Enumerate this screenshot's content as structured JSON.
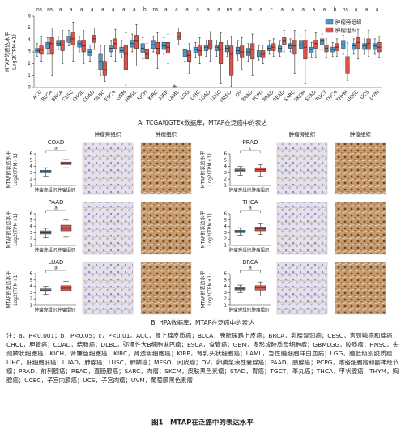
{
  "chart_data": [
    {
      "type": "box",
      "y_label": [
        "MTAP的表达水平",
        "Log2(TPM+1)"
      ],
      "categories": [
        "ACC",
        "BLCA",
        "BRCA",
        "CESC",
        "CHOL",
        "COAD",
        "DLBC",
        "ESCA",
        "GBM",
        "HNSC",
        "KICH",
        "KIRC",
        "KIRP",
        "LAML",
        "LGG",
        "LIHC",
        "LUAD",
        "LUSC",
        "MESO",
        "OV",
        "PAAD",
        "PCPG",
        "PRAD",
        "READ",
        "SARC",
        "SKCM",
        "STAD",
        "TGCT",
        "THCA",
        "THYM",
        "UCEC",
        "UCS",
        "UVM"
      ],
      "significance": [
        "ns",
        "ns",
        "a",
        "a",
        "a",
        "a",
        "a",
        "a",
        "a",
        "a",
        "b",
        "ns",
        "a",
        "a",
        "a",
        "a",
        "a",
        "a",
        "ns",
        "a",
        "a",
        "a",
        "c",
        "a",
        "a",
        "a",
        "a",
        "a",
        "b",
        "ns",
        "a",
        "a",
        "a"
      ],
      "series": [
        {
          "name": "肿瘤旁组织",
          "color": "#4a9acb",
          "values": [
            [
              2.6,
              2.9,
              3.1,
              3.3,
              3.7
            ],
            [
              2.8,
              3.3,
              3.6,
              3.8,
              4.2
            ],
            [
              3.2,
              3.5,
              3.7,
              3.9,
              4.3
            ],
            [
              3.5,
              3.8,
              4.0,
              4.3,
              4.8
            ],
            [
              3.0,
              3.4,
              3.7,
              3.9,
              4.3
            ],
            [
              2.2,
              2.7,
              3.0,
              3.2,
              3.6
            ],
            [
              1.0,
              1.5,
              2.2,
              2.8,
              3.5
            ],
            [
              2.6,
              3.0,
              3.3,
              3.5,
              3.9
            ],
            [
              2.5,
              2.9,
              3.1,
              3.4,
              3.9
            ],
            [
              3.0,
              3.4,
              3.7,
              4.0,
              4.5
            ],
            [
              2.4,
              2.9,
              3.3,
              3.7,
              4.2
            ],
            [
              3.0,
              3.3,
              3.6,
              3.9,
              4.3
            ],
            [
              2.8,
              3.2,
              3.5,
              3.8,
              4.2
            ],
            [
              0.0,
              0.0,
              0.05,
              0.1,
              0.2
            ],
            [
              2.2,
              2.6,
              2.9,
              3.2,
              3.6
            ],
            [
              2.5,
              2.9,
              3.2,
              3.4,
              3.8
            ],
            [
              2.6,
              3.1,
              3.4,
              3.6,
              4.0
            ],
            [
              2.6,
              3.1,
              3.4,
              3.6,
              4.0
            ],
            [
              2.6,
              3.0,
              3.3,
              3.6,
              4.0
            ],
            [
              2.3,
              2.8,
              3.1,
              3.4,
              3.9
            ],
            [
              2.2,
              2.7,
              3.0,
              3.3,
              3.7
            ],
            [
              2.3,
              2.6,
              2.9,
              3.1,
              3.5
            ],
            [
              2.8,
              3.1,
              3.3,
              3.5,
              3.9
            ],
            [
              2.6,
              3.0,
              3.3,
              3.5,
              3.9
            ],
            [
              3.0,
              3.3,
              3.5,
              3.7,
              4.1
            ],
            [
              2.9,
              3.3,
              3.6,
              3.9,
              4.3
            ],
            [
              2.5,
              2.9,
              3.2,
              3.4,
              3.8
            ],
            [
              3.2,
              3.6,
              3.9,
              4.1,
              4.5
            ],
            [
              2.6,
              3.0,
              3.2,
              3.4,
              3.8
            ],
            [
              2.8,
              3.3,
              3.6,
              3.9,
              4.4
            ],
            [
              2.8,
              3.2,
              3.5,
              3.7,
              4.1
            ],
            [
              2.8,
              3.2,
              3.5,
              3.7,
              4.1
            ],
            [
              2.8,
              3.2,
              3.5,
              3.7,
              4.1
            ]
          ]
        },
        {
          "name": "肿瘤组织",
          "color": "#d9534a",
          "values": [
            [
              2.2,
              2.8,
              3.2,
              3.5,
              4.3
            ],
            [
              1.0,
              2.8,
              3.7,
              4.2,
              5.0
            ],
            [
              2.0,
              3.1,
              3.6,
              4.0,
              4.8
            ],
            [
              2.2,
              3.6,
              4.1,
              4.6,
              5.5
            ],
            [
              2.0,
              3.0,
              3.5,
              4.0,
              4.8
            ],
            [
              3.2,
              3.8,
              4.1,
              4.4,
              5.0
            ],
            [
              0.5,
              1.0,
              1.5,
              2.2,
              3.5
            ],
            [
              2.2,
              3.3,
              3.7,
              4.1,
              4.9
            ],
            [
              0.2,
              1.5,
              2.8,
              3.6,
              4.6
            ],
            [
              1.8,
              3.3,
              3.9,
              4.4,
              5.3
            ],
            [
              1.8,
              2.4,
              2.8,
              3.2,
              3.7
            ],
            [
              1.6,
              2.8,
              3.3,
              3.8,
              4.6
            ],
            [
              2.0,
              2.9,
              3.4,
              3.8,
              4.5
            ],
            [
              3.6,
              4.0,
              4.3,
              4.6,
              5.0
            ],
            [
              1.2,
              2.2,
              2.7,
              3.1,
              3.7
            ],
            [
              2.0,
              2.7,
              3.1,
              3.5,
              4.2
            ],
            [
              2.2,
              3.2,
              3.6,
              4.0,
              4.7
            ],
            [
              0.3,
              2.0,
              3.2,
              3.8,
              4.6
            ],
            [
              0.1,
              1.0,
              2.8,
              3.5,
              4.3
            ],
            [
              1.5,
              2.5,
              3.0,
              3.5,
              4.2
            ],
            [
              1.0,
              2.4,
              3.2,
              3.7,
              4.5
            ],
            [
              2.0,
              2.5,
              2.8,
              3.1,
              3.6
            ],
            [
              2.6,
              3.1,
              3.4,
              3.7,
              4.1
            ],
            [
              3.0,
              3.6,
              3.9,
              4.2,
              4.8
            ],
            [
              1.2,
              2.8,
              3.5,
              4.0,
              4.8
            ],
            [
              0.3,
              2.4,
              3.4,
              4.0,
              4.8
            ],
            [
              2.5,
              3.3,
              3.7,
              4.0,
              4.6
            ],
            [
              2.5,
              3.0,
              3.3,
              3.6,
              4.1
            ],
            [
              2.6,
              3.1,
              3.4,
              3.7,
              4.1
            ],
            [
              0.6,
              1.2,
              1.8,
              2.6,
              3.8
            ],
            [
              2.4,
              3.3,
              3.8,
              4.2,
              4.9
            ],
            [
              2.6,
              3.2,
              3.7,
              4.1,
              4.8
            ],
            [
              2.5,
              3.0,
              3.4,
              3.8,
              4.3
            ]
          ]
        }
      ],
      "ylim": [
        0,
        6
      ],
      "yticks": [
        0,
        1,
        2,
        3,
        4,
        5,
        6
      ],
      "legend": "top-right"
    },
    {
      "type": "box",
      "title": "COAD",
      "y_label": [
        "MTAP的表达水平",
        "Log2(TPM+1)"
      ],
      "categories": [
        "肿瘤旁组织",
        "肿瘤组织"
      ],
      "colors": [
        "#4a9acb",
        "#d9534a"
      ],
      "values": [
        [
          2.5,
          3.0,
          3.2,
          3.4,
          3.8
        ],
        [
          3.8,
          4.3,
          4.5,
          4.7,
          5.1
        ]
      ],
      "significance": "a",
      "ylim": [
        1,
        6
      ],
      "yticks": [
        1,
        2,
        3,
        4,
        5,
        6
      ]
    },
    {
      "type": "box",
      "title": "PAAD",
      "y_label": [
        "MTAP的表达水平",
        "Log2(TPM+1)"
      ],
      "categories": [
        "肿瘤旁组织",
        "肿瘤组织"
      ],
      "colors": [
        "#4a9acb",
        "#d9534a"
      ],
      "values": [
        [
          2.2,
          2.8,
          3.0,
          3.3,
          3.7
        ],
        [
          2.3,
          3.3,
          3.7,
          4.2,
          5.0
        ]
      ],
      "significance": "a",
      "ylim": [
        1,
        6
      ],
      "yticks": [
        1,
        2,
        3,
        4,
        5,
        6
      ]
    },
    {
      "type": "box",
      "title": "LUAD",
      "y_label": [
        "MTAP的表达水平",
        "Log2(TPM+1)"
      ],
      "categories": [
        "肿瘤旁组织",
        "肿瘤组织"
      ],
      "colors": [
        "#4a9acb",
        "#d9534a"
      ],
      "values": [
        [
          2.7,
          3.2,
          3.4,
          3.6,
          4.0
        ],
        [
          2.5,
          3.3,
          3.7,
          4.1,
          4.8
        ]
      ],
      "significance": "a",
      "ylim": [
        1,
        6
      ],
      "yticks": [
        1,
        2,
        3,
        4,
        5,
        6
      ]
    },
    {
      "type": "box",
      "title": "PRAD",
      "y_label": [
        "MTAP的表达水平",
        "Log2(TPM+1)"
      ],
      "categories": [
        "肿瘤旁组织",
        "肿瘤组织"
      ],
      "colors": [
        "#4a9acb",
        "#d9534a"
      ],
      "values": [
        [
          2.6,
          3.1,
          3.4,
          3.6,
          4.0
        ],
        [
          2.5,
          3.2,
          3.5,
          3.8,
          4.3
        ]
      ],
      "significance": "c",
      "ylim": [
        1,
        6
      ],
      "yticks": [
        1,
        2,
        3,
        4,
        5,
        6
      ]
    },
    {
      "type": "box",
      "title": "THCA",
      "y_label": [
        "MTAP的表达水平",
        "Log2(TPM+1)"
      ],
      "categories": [
        "肿瘤旁组织",
        "肿瘤组织"
      ],
      "colors": [
        "#4a9acb",
        "#d9534a"
      ],
      "values": [
        [
          2.6,
          3.0,
          3.2,
          3.4,
          3.8
        ],
        [
          2.7,
          3.3,
          3.6,
          3.9,
          4.4
        ]
      ],
      "significance": "a",
      "ylim": [
        1,
        6
      ],
      "yticks": [
        1,
        2,
        3,
        4,
        5,
        6
      ]
    },
    {
      "type": "box",
      "title": "BRCA",
      "y_label": [
        "MTAP的表达水平",
        "Log2(TPM+1)"
      ],
      "categories": [
        "肿瘤旁组织",
        "肿瘤组织"
      ],
      "colors": [
        "#4a9acb",
        "#d9534a"
      ],
      "values": [
        [
          3.0,
          3.4,
          3.6,
          3.8,
          4.2
        ],
        [
          2.5,
          3.4,
          3.8,
          4.1,
          4.7
        ]
      ],
      "significance": "a",
      "ylim": [
        1,
        6
      ],
      "yticks": [
        1,
        2,
        3,
        4,
        5,
        6
      ]
    }
  ],
  "captions": [
    "A. TCGA和GTEx数据库，MTAP在泛癌中的表达",
    "B. HPA数据库，MTAP在泛癌中的表达"
  ],
  "image_headers": [
    "肿瘤旁组织",
    "肿瘤组织"
  ],
  "note": "注：a，P<0.001；b，P<0.05；c，P<0.01。ACC，肾上腺皮质癌；BLCA，膀胱尿路上皮癌；BRCA，乳腺浸润癌；CESC，宫颈鳞癌和腺癌；CHOL，胆管癌；COAD，结肠癌；DLBC，弥漫性大B细胞淋巴瘤；ESCA，食管癌；GBM，多形成胶质母细胞瘤；GBMLGG，胶质瘤；HNSC，头颈鳞状细胞癌；KICH，肾嫌色细胞癌；KIRC，肾透明细胞癌；KIRP，肾乳头状细胞癌；LAML，急性髓细胞样白血病；LGG，脑低级别胶质瘤；LIHC，肝细胞肝癌；LUAD，肺腺癌；LUSC，肺鳞癌；MESO，间皮瘤；OV，卵巢浆液性囊腺癌；PAAD，胰腺癌；PCPG，嗜铬细胞瘤和副神经节瘤；PRAD，前列腺癌；READ，直肠腺癌；SARC，肉瘤；SKCM，皮肤黑色素瘤；STAD，胃癌；TGCT，睾丸癌；THCA，甲状腺癌；THYM，胸腺癌；UCEC，子宫内膜癌；UCS，子宫肉瘤；UVM，葡萄膜黑色素瘤",
  "figure_title": "图1　MTAP在泛癌中的表达水平"
}
